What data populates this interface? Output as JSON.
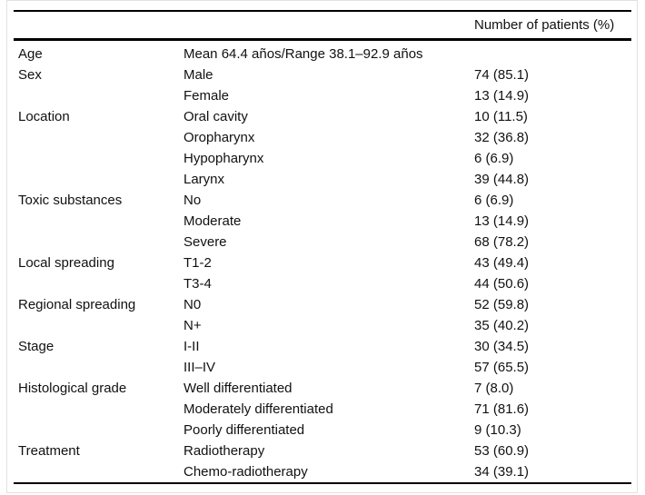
{
  "table": {
    "header": {
      "category": "",
      "label": "",
      "value": "Number of patients (%)"
    },
    "rows": [
      {
        "category": "Age",
        "label": "Mean 64.4 años/Range 38.1–92.9 años",
        "value": ""
      },
      {
        "category": "Sex",
        "label": "Male",
        "value": "74 (85.1)"
      },
      {
        "category": "",
        "label": "Female",
        "value": "13 (14.9)"
      },
      {
        "category": "Location",
        "label": "Oral cavity",
        "value": "10 (11.5)"
      },
      {
        "category": "",
        "label": "Oropharynx",
        "value": "32 (36.8)"
      },
      {
        "category": "",
        "label": "Hypopharynx",
        "value": "6 (6.9)"
      },
      {
        "category": "",
        "label": "Larynx",
        "value": "39 (44.8)"
      },
      {
        "category": "Toxic substances",
        "label": "No",
        "value": "6 (6.9)"
      },
      {
        "category": "",
        "label": "Moderate",
        "value": "13 (14.9)"
      },
      {
        "category": "",
        "label": "Severe",
        "value": "68 (78.2)"
      },
      {
        "category": "Local spreading",
        "label": "T1-2",
        "value": "43 (49.4)"
      },
      {
        "category": "",
        "label": "T3-4",
        "value": "44 (50.6)"
      },
      {
        "category": "Regional spreading",
        "label": "N0",
        "value": "52 (59.8)"
      },
      {
        "category": "",
        "label": "N+",
        "value": "35 (40.2)"
      },
      {
        "category": "Stage",
        "label": "I-II",
        "value": "30 (34.5)"
      },
      {
        "category": "",
        "label": "III–IV",
        "value": "57 (65.5)"
      },
      {
        "category": "Histological grade",
        "label": "Well differentiated",
        "value": "7 (8.0)"
      },
      {
        "category": "",
        "label": "Moderately differentiated",
        "value": "71 (81.6)"
      },
      {
        "category": "",
        "label": "Poorly differentiated",
        "value": "9 (10.3)"
      },
      {
        "category": "Treatment",
        "label": "Radiotherapy",
        "value": "53 (60.9)"
      },
      {
        "category": "",
        "label": "Chemo-radiotherapy",
        "value": "34 (39.1)"
      }
    ]
  }
}
